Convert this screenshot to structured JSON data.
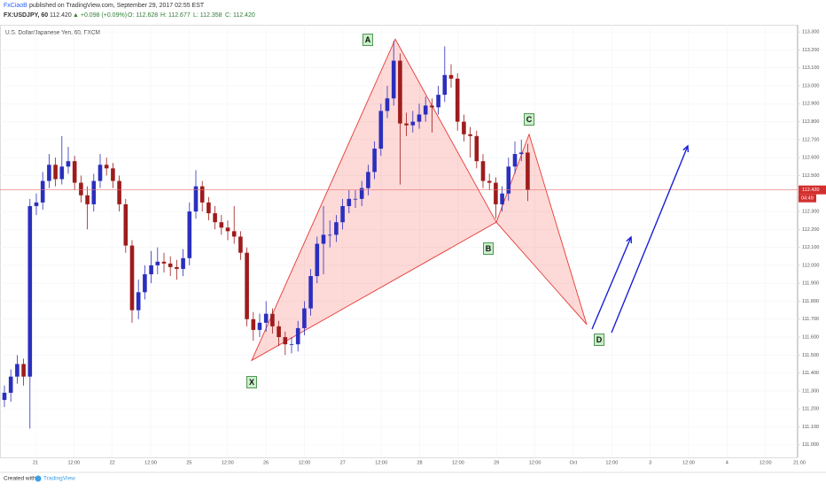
{
  "header": {
    "author": "FxCiaoB",
    "published": "published on TradingView.com, September 29, 2017 02:55 EST",
    "symbol": "FX:USDJPY, 60",
    "price": "112.420",
    "change": "▲ +0.098 (+0.09%)",
    "open": "O: 112.628",
    "high": "H: 112.677",
    "low": "L: 112.358",
    "close": "C: 112.420"
  },
  "footer": {
    "created": "Created with",
    "brand": "TradingView"
  },
  "chart_data": {
    "type": "candlestick",
    "title": "U.S. Dollar/Japanese Yen, 60, FXCM",
    "up_color": "#2b2fbd",
    "down_color": "#9e1c1c",
    "grid": true,
    "x_labels": [
      "21",
      "12:00",
      "22",
      "12:00",
      "25",
      "12:00",
      "26",
      "12:00",
      "27",
      "12:00",
      "28",
      "12:00",
      "29",
      "12:00",
      "Oct",
      "12:00",
      "3",
      "12:00",
      "4",
      "12:00",
      "21:00"
    ],
    "ylim": [
      110.93,
      113.34
    ],
    "yticks": [
      {
        "value": 113.3,
        "label": "113.300"
      },
      {
        "value": 113.2,
        "label": "113.200"
      },
      {
        "value": 113.1,
        "label": "113.100"
      },
      {
        "value": 113.0,
        "label": "113.000"
      },
      {
        "value": 112.9,
        "label": "112.900"
      },
      {
        "value": 112.8,
        "label": "112.800"
      },
      {
        "value": 112.7,
        "label": "112.700"
      },
      {
        "value": 112.6,
        "label": "112.600"
      },
      {
        "value": 112.5,
        "label": "112.500"
      },
      {
        "value": 112.3,
        "label": "112.300"
      },
      {
        "value": 112.2,
        "label": "112.200"
      },
      {
        "value": 112.1,
        "label": "112.100"
      },
      {
        "value": 112.0,
        "label": "112.000"
      },
      {
        "value": 111.9,
        "label": "111.900"
      },
      {
        "value": 111.8,
        "label": "111.800"
      },
      {
        "value": 111.7,
        "label": "111.700"
      },
      {
        "value": 111.6,
        "label": "111.600"
      },
      {
        "value": 111.5,
        "label": "111.500"
      },
      {
        "value": 111.4,
        "label": "111.400"
      },
      {
        "value": 111.3,
        "label": "111.300"
      },
      {
        "value": 111.2,
        "label": "111.200"
      },
      {
        "value": 111.1,
        "label": "111.100"
      },
      {
        "value": 111.0,
        "label": "111.000"
      }
    ],
    "last_price_label": "112.420",
    "countdown": "04:49",
    "open": [
      111.25,
      111.29,
      111.38,
      111.45,
      111.38,
      112.33,
      112.35,
      112.47,
      112.56,
      112.48,
      112.55,
      112.58,
      112.46,
      112.39,
      112.34,
      112.47,
      112.56,
      112.54,
      112.47,
      112.34,
      112.11,
      111.75,
      111.85,
      111.95,
      112.0,
      112.02,
      112.01,
      111.99,
      111.98,
      112.04,
      112.3,
      112.44,
      112.35,
      112.29,
      112.24,
      112.21,
      112.19,
      112.16,
      112.07,
      111.7,
      111.64,
      111.68,
      111.73,
      111.66,
      111.6,
      111.56,
      111.56,
      111.65,
      111.76,
      111.94,
      112.12,
      112.17,
      112.17,
      112.24,
      112.33,
      112.37,
      112.37,
      112.43,
      112.52,
      112.65,
      112.86,
      112.93,
      113.14,
      112.79,
      112.78,
      112.8,
      112.84,
      112.89,
      112.88,
      112.95,
      113.06,
      113.04,
      112.8,
      112.73,
      112.72,
      112.58,
      112.47,
      112.46,
      112.34,
      112.4,
      112.55,
      112.62,
      112.628
    ],
    "high": [
      111.33,
      111.42,
      111.5,
      111.48,
      112.37,
      112.4,
      112.52,
      112.62,
      112.6,
      112.72,
      112.66,
      112.61,
      112.5,
      112.44,
      112.51,
      112.62,
      112.6,
      112.57,
      112.5,
      112.37,
      112.14,
      111.92,
      112.0,
      112.08,
      112.1,
      112.07,
      112.05,
      112.03,
      112.09,
      112.35,
      112.53,
      112.47,
      112.38,
      112.33,
      112.28,
      112.25,
      112.33,
      112.19,
      112.1,
      111.74,
      111.73,
      111.8,
      111.76,
      111.69,
      111.63,
      111.6,
      111.69,
      111.8,
      111.98,
      112.16,
      112.33,
      112.25,
      112.28,
      112.37,
      112.42,
      112.42,
      112.47,
      112.56,
      112.69,
      112.9,
      113.0,
      113.25,
      113.18,
      112.85,
      112.86,
      112.9,
      112.94,
      112.93,
      113.0,
      113.22,
      113.12,
      113.07,
      112.84,
      112.77,
      112.75,
      112.62,
      112.51,
      112.49,
      112.44,
      112.6,
      112.69,
      112.7,
      112.677
    ],
    "low": [
      111.21,
      111.24,
      111.34,
      111.33,
      111.09,
      112.28,
      112.31,
      112.43,
      112.44,
      112.45,
      112.51,
      112.42,
      112.35,
      112.2,
      112.3,
      112.43,
      112.5,
      112.43,
      112.3,
      112.07,
      111.68,
      111.7,
      111.81,
      111.9,
      111.95,
      111.96,
      111.94,
      111.92,
      111.94,
      112.0,
      112.26,
      112.3,
      112.25,
      112.2,
      112.17,
      112.14,
      112.12,
      112.03,
      111.66,
      111.58,
      111.6,
      111.63,
      111.62,
      111.55,
      111.5,
      111.51,
      111.52,
      111.61,
      111.72,
      111.9,
      111.95,
      112.1,
      112.13,
      112.2,
      112.29,
      112.32,
      112.33,
      112.39,
      112.48,
      112.61,
      112.82,
      112.89,
      112.45,
      112.72,
      112.74,
      112.76,
      112.8,
      112.74,
      112.84,
      112.91,
      112.99,
      112.75,
      112.69,
      112.6,
      112.54,
      112.43,
      112.42,
      112.26,
      112.3,
      112.36,
      112.51,
      112.58,
      112.358
    ],
    "close": [
      111.29,
      111.38,
      111.45,
      111.38,
      112.33,
      112.35,
      112.47,
      112.56,
      112.48,
      112.55,
      112.58,
      112.46,
      112.39,
      112.34,
      112.47,
      112.56,
      112.54,
      112.47,
      112.34,
      112.11,
      111.75,
      111.85,
      111.95,
      112.0,
      112.02,
      112.01,
      111.99,
      111.98,
      112.04,
      112.3,
      112.44,
      112.35,
      112.29,
      112.24,
      112.21,
      112.19,
      112.16,
      112.07,
      111.7,
      111.64,
      111.68,
      111.73,
      111.66,
      111.6,
      111.56,
      111.56,
      111.65,
      111.76,
      111.94,
      112.12,
      112.17,
      112.17,
      112.24,
      112.33,
      112.37,
      112.37,
      112.43,
      112.52,
      112.65,
      112.86,
      112.93,
      113.14,
      112.79,
      112.78,
      112.8,
      112.84,
      112.89,
      112.88,
      112.95,
      113.06,
      113.04,
      112.8,
      112.73,
      112.72,
      112.58,
      112.47,
      112.46,
      112.34,
      112.4,
      112.55,
      112.62,
      112.628,
      112.42
    ],
    "pattern": {
      "fill": "rgba(244,67,54,0.2)",
      "stroke": "#e53935",
      "points": [
        {
          "label": "X",
          "price": 111.47
        },
        {
          "label": "A",
          "price": 113.26
        },
        {
          "label": "B",
          "price": 112.24
        },
        {
          "label": "C",
          "price": 112.73
        },
        {
          "label": "D",
          "price": 111.67
        }
      ]
    }
  }
}
